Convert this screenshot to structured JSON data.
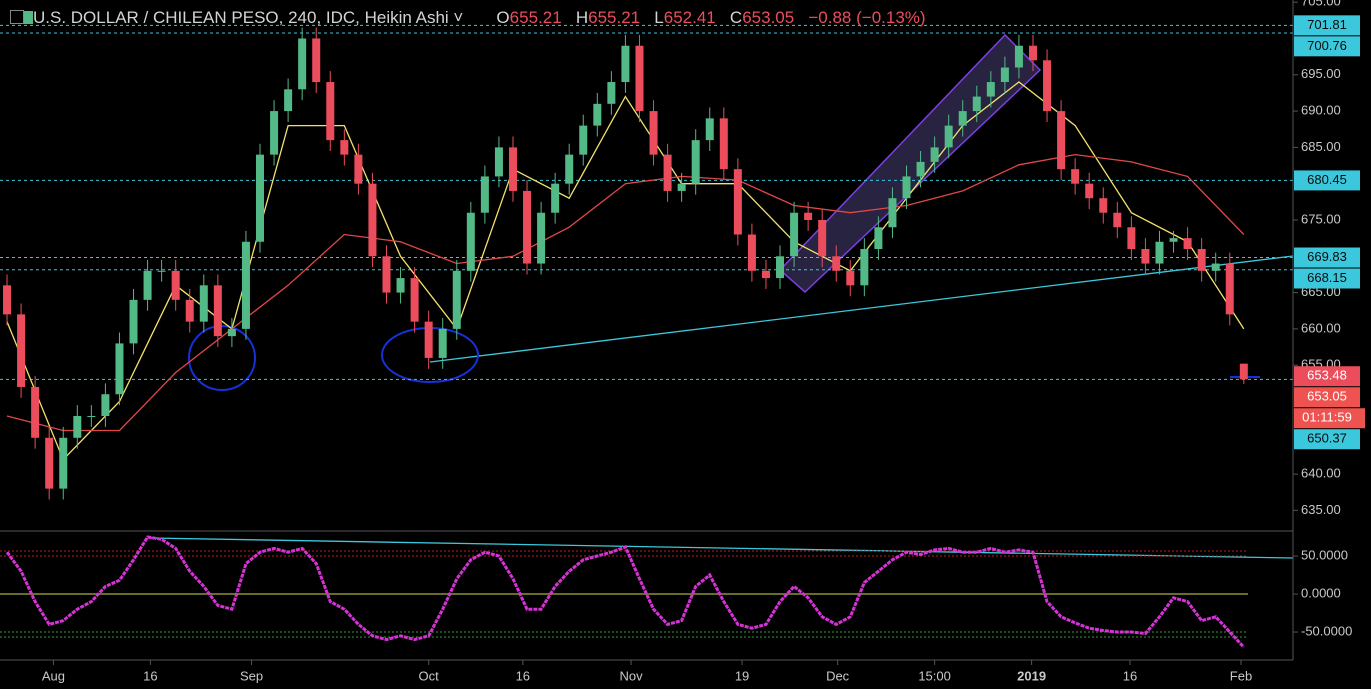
{
  "chart_data": [
    {
      "type": "candlestick",
      "title": "U.S. DOLLAR / CHILEAN PESO, 240, IDC, Heikin Ashi",
      "ohlc_letters": [
        "O",
        "H",
        "L",
        "C"
      ],
      "change": "−0.88 (−0.13%)",
      "up_color": "#53b987",
      "down_color": "#eb4d5c",
      "xlim": [
        -0.5,
        91.5
      ],
      "xticks": [
        {
          "value": 3.3,
          "label": "Aug"
        },
        {
          "value": 10.2,
          "label": "16"
        },
        {
          "value": 17.4,
          "label": "Sep"
        },
        {
          "value": 30.0,
          "label": "Oct"
        },
        {
          "value": 36.7,
          "label": "16"
        },
        {
          "value": 44.4,
          "label": "Nov"
        },
        {
          "value": 52.3,
          "label": "19"
        },
        {
          "value": 59.1,
          "label": "Dec"
        },
        {
          "value": 66.0,
          "label": "15:00"
        },
        {
          "value": 72.9,
          "label": "2019"
        },
        {
          "value": 79.9,
          "label": "16"
        },
        {
          "value": 87.8,
          "label": "Feb"
        }
      ],
      "ylim": [
        632.3,
        705.3
      ],
      "yticks": [
        {
          "value": 705,
          "label": "705.00"
        },
        {
          "value": 695,
          "label": "695.00"
        },
        {
          "value": 690,
          "label": "690.00"
        },
        {
          "value": 685,
          "label": "685.00"
        },
        {
          "value": 675,
          "label": "675.00"
        },
        {
          "value": 665,
          "label": "665.00"
        },
        {
          "value": 660,
          "label": "660.00"
        },
        {
          "value": 655,
          "label": "655.00"
        },
        {
          "value": 640,
          "label": "640.00"
        },
        {
          "value": 635,
          "label": "635.00"
        }
      ],
      "candles": [
        [
          666,
          667.5,
          660.5,
          662
        ],
        [
          662,
          663.5,
          650.5,
          652
        ],
        [
          652,
          653.5,
          643.5,
          645
        ],
        [
          645,
          646.5,
          636.5,
          638
        ],
        [
          638,
          646.5,
          636.5,
          645
        ],
        [
          645,
          649.5,
          643.5,
          648
        ],
        [
          648,
          649.5,
          646.5,
          648
        ],
        [
          648,
          652.5,
          646.5,
          651
        ],
        [
          651,
          659.5,
          649.5,
          658
        ],
        [
          658,
          665.5,
          656.5,
          664
        ],
        [
          664,
          669.5,
          662.5,
          668
        ],
        [
          668,
          669.5,
          666.5,
          668
        ],
        [
          668,
          669.5,
          662.5,
          664
        ],
        [
          664,
          665.5,
          659.5,
          661
        ],
        [
          661,
          667.5,
          659.5,
          666
        ],
        [
          666,
          667.5,
          657.5,
          659
        ],
        [
          659,
          661.5,
          657.5,
          660
        ],
        [
          660,
          673.5,
          658.5,
          672
        ],
        [
          672,
          685.5,
          670.5,
          684
        ],
        [
          684,
          691.5,
          682.5,
          690
        ],
        [
          690,
          694.5,
          688.5,
          693
        ],
        [
          693,
          701.5,
          691.5,
          700
        ],
        [
          700,
          701.5,
          692.5,
          694
        ],
        [
          694,
          695.5,
          684.5,
          686
        ],
        [
          686,
          687.5,
          682.5,
          684
        ],
        [
          684,
          685.5,
          678.5,
          680
        ],
        [
          680,
          681.5,
          668.5,
          670
        ],
        [
          670,
          671.5,
          663.5,
          665
        ],
        [
          665,
          668.5,
          663.5,
          667
        ],
        [
          667,
          668.5,
          659.5,
          661
        ],
        [
          661,
          662.5,
          654.5,
          656
        ],
        [
          656,
          661.5,
          654.5,
          660
        ],
        [
          660,
          669.5,
          658.5,
          668
        ],
        [
          668,
          677.5,
          666.5,
          676
        ],
        [
          676,
          682.5,
          674.5,
          681
        ],
        [
          681,
          686.5,
          679.5,
          685
        ],
        [
          685,
          686.5,
          677.5,
          679
        ],
        [
          679,
          680.5,
          667.5,
          669
        ],
        [
          669,
          677.5,
          667.5,
          676
        ],
        [
          676,
          681.5,
          674.5,
          680
        ],
        [
          680,
          685.5,
          678.5,
          684
        ],
        [
          684,
          689.5,
          682.5,
          688
        ],
        [
          688,
          692.5,
          686.5,
          691
        ],
        [
          691,
          695.5,
          689.5,
          694
        ],
        [
          694,
          700.5,
          692.5,
          699
        ],
        [
          699,
          700.5,
          688.5,
          690
        ],
        [
          690,
          691.5,
          682.5,
          684
        ],
        [
          684,
          685.5,
          677.5,
          679
        ],
        [
          679,
          681.5,
          677.5,
          680
        ],
        [
          680,
          687.5,
          678.5,
          686
        ],
        [
          686,
          690.5,
          684.5,
          689
        ],
        [
          689,
          690.5,
          680.5,
          682
        ],
        [
          682,
          683.5,
          671.5,
          673
        ],
        [
          673,
          674.5,
          666.5,
          668
        ],
        [
          668,
          669.5,
          665.5,
          667
        ],
        [
          667,
          671.5,
          665.5,
          670
        ],
        [
          670,
          677.5,
          668.5,
          676
        ],
        [
          676,
          677.5,
          673.5,
          675
        ],
        [
          675,
          676.5,
          668.5,
          670
        ],
        [
          670,
          671.5,
          666.5,
          668
        ],
        [
          668,
          669.5,
          664.5,
          666
        ],
        [
          666,
          672.5,
          664.5,
          671
        ],
        [
          671,
          675.5,
          669.5,
          674
        ],
        [
          674,
          679.5,
          672.5,
          678
        ],
        [
          678,
          682.5,
          676.5,
          681
        ],
        [
          681,
          684.5,
          679.5,
          683
        ],
        [
          683,
          686.5,
          681.5,
          685
        ],
        [
          685,
          689.5,
          683.5,
          688
        ],
        [
          688,
          691.5,
          686.5,
          690
        ],
        [
          690,
          693.5,
          688.5,
          692
        ],
        [
          692,
          695.5,
          690.5,
          694
        ],
        [
          694,
          697.5,
          692.5,
          696
        ],
        [
          696,
          700.5,
          694.5,
          699
        ],
        [
          699,
          700.5,
          695.5,
          697
        ],
        [
          697,
          698.5,
          688.5,
          690
        ],
        [
          690,
          691.5,
          680.5,
          682
        ],
        [
          682,
          683.5,
          678.5,
          680
        ],
        [
          680,
          681.5,
          676.5,
          678
        ],
        [
          678,
          679.5,
          674.5,
          676
        ],
        [
          676,
          677.5,
          672.5,
          674
        ],
        [
          674,
          675.5,
          669.5,
          671
        ],
        [
          671,
          672.5,
          667.5,
          669
        ],
        [
          669,
          673.5,
          667.5,
          672
        ],
        [
          672,
          673.5,
          670.5,
          672.5
        ],
        [
          672.5,
          674,
          669.5,
          671
        ],
        [
          671,
          672.5,
          666.5,
          668
        ],
        [
          668,
          670.5,
          666.5,
          669
        ],
        [
          669,
          670.5,
          660.5,
          662
        ],
        [
          655.21,
          655.21,
          652.41,
          653.05
        ]
      ],
      "ma": [
        {
          "color": "#f3e26a",
          "x": [
            0,
            4,
            8,
            12,
            16,
            20,
            24,
            28,
            32,
            36,
            40,
            44,
            48,
            52,
            56,
            60,
            64,
            68,
            72,
            76,
            80,
            84,
            88
          ],
          "values": [
            661,
            642,
            650,
            666,
            660,
            688,
            688,
            670,
            660,
            682,
            678,
            692,
            680,
            680,
            672,
            668,
            678,
            688,
            694,
            688,
            676,
            672,
            660
          ]
        },
        {
          "color": "#e04848",
          "x": [
            0,
            4,
            8,
            12,
            16,
            20,
            24,
            28,
            32,
            36,
            40,
            44,
            48,
            52,
            56,
            60,
            64,
            68,
            72,
            76,
            80,
            84,
            88
          ],
          "values": [
            648,
            646,
            646,
            654,
            660,
            666,
            673,
            672,
            669,
            670,
            674,
            680,
            681,
            680.5,
            677,
            676,
            677,
            679,
            682.6,
            684,
            683,
            681,
            673
          ]
        }
      ],
      "level_color": "#3cc8dc",
      "levels": [
        {
          "value": 701.81,
          "color": "#3cc8dc"
        },
        {
          "value": 700.76,
          "color": "#3cc8dc"
        },
        {
          "value": 680.45,
          "color": "#3cc8dc"
        },
        {
          "value": 669.83,
          "color": "#3cc8dc"
        },
        {
          "value": 668.15,
          "color": "#3cc8dc"
        },
        {
          "value": 653.05,
          "color": "#ef5350"
        }
      ],
      "last_price": 653.48,
      "countdown": "01:11:59",
      "marker_price": 650.37
    },
    {
      "type": "line",
      "color": "#d633d6",
      "xlim": [
        -0.5,
        91.5
      ],
      "ylim": [
        -86.8,
        81.6
      ],
      "yticks": [
        {
          "value": 50,
          "label": "50.0000"
        },
        {
          "value": 0,
          "label": "0.0000"
        },
        {
          "value": -50,
          "label": "-50.0000"
        }
      ],
      "upper_bands": [
        50,
        56.6
      ],
      "lower_bands": [
        -50,
        -56.6
      ],
      "values": [
        55,
        30,
        -10,
        -40,
        -35,
        -20,
        -10,
        10,
        18,
        45,
        75,
        72,
        60,
        30,
        10,
        -15,
        -20,
        40,
        55,
        60,
        55,
        60,
        40,
        -10,
        -20,
        -40,
        -55,
        -60,
        -55,
        -60,
        -55,
        -20,
        20,
        45,
        55,
        50,
        20,
        -20,
        -20,
        10,
        30,
        45,
        50,
        55,
        62,
        20,
        -20,
        -40,
        -35,
        10,
        25,
        -10,
        -40,
        -45,
        -40,
        -10,
        10,
        -5,
        -30,
        -40,
        -30,
        15,
        30,
        45,
        55,
        52,
        58,
        60,
        55,
        55,
        60,
        55,
        58,
        55,
        -10,
        -30,
        -38,
        -45,
        -48,
        -50,
        -50,
        -52,
        -30,
        -5,
        -10,
        -35,
        -30,
        -50,
        -70
      ]
    }
  ]
}
